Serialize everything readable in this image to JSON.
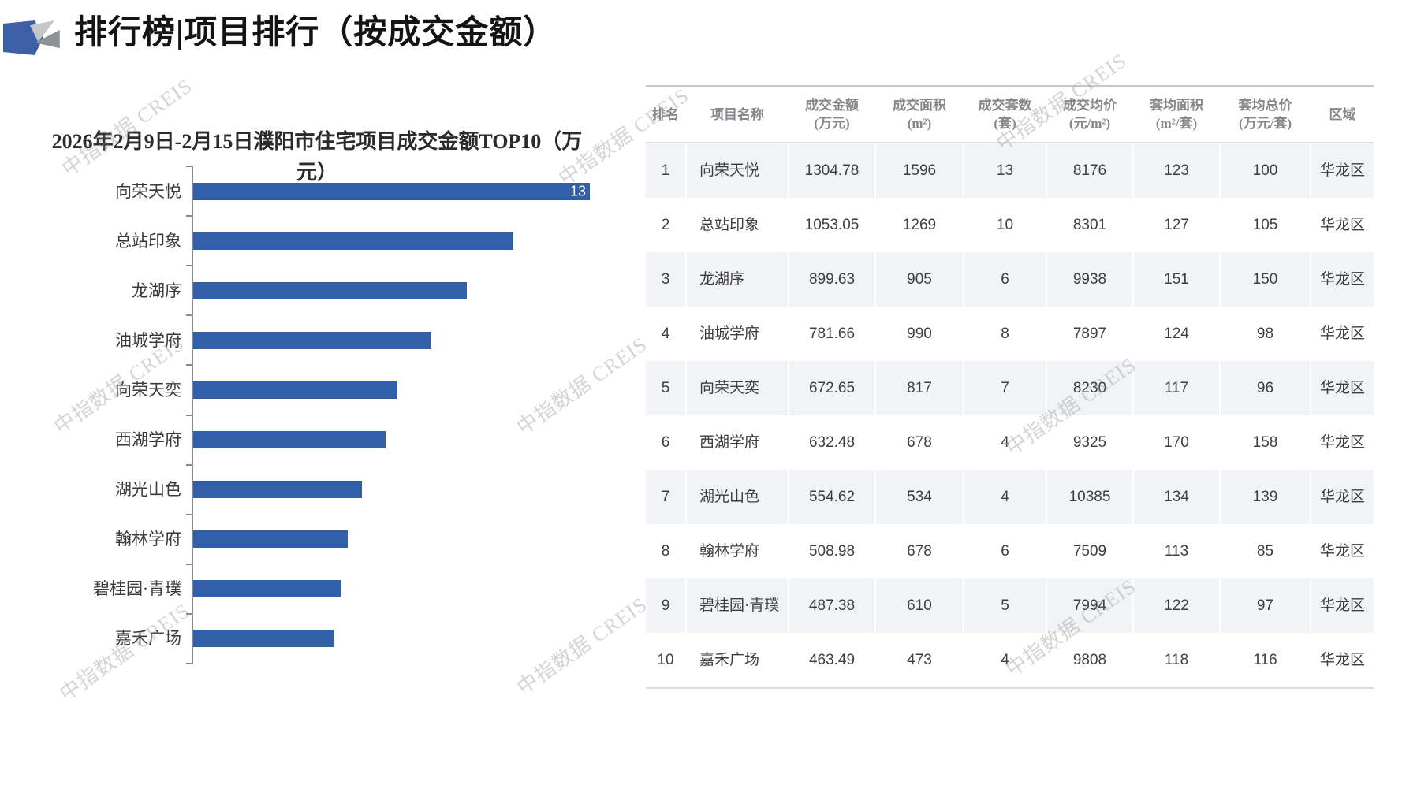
{
  "header": {
    "title": "排行榜|项目排行（按成交金额）"
  },
  "watermark": {
    "text": "中指数据 CREIS"
  },
  "chart": {
    "title_line1": "2026年2月9日-2月15日濮阳市住宅项目成交金额TOP10（万",
    "title_line2": "元）",
    "bar_color": "#3160A8",
    "first_bar_label": "13"
  },
  "chart_data": {
    "type": "bar",
    "orientation": "horizontal",
    "title": "2026年2月9日-2月15日濮阳市住宅项目成交金额TOP10（万元）",
    "categories": [
      "向荣天悦",
      "总站印象",
      "龙湖序",
      "油城学府",
      "向荣天奕",
      "西湖学府",
      "湖光山色",
      "翰林学府",
      "碧桂园·青璞",
      "嘉禾广场"
    ],
    "values": [
      1304.78,
      1053.05,
      899.63,
      781.66,
      672.65,
      632.48,
      554.62,
      508.98,
      487.38,
      463.49
    ],
    "xlabel": "",
    "ylabel": "",
    "xlim": [
      0,
      1310
    ],
    "grid": false,
    "legend": false,
    "visible_data_label_on_first_bar": "13"
  },
  "table": {
    "columns": [
      {
        "line1": "排名",
        "line2": ""
      },
      {
        "line1": "项目名称",
        "line2": ""
      },
      {
        "line1": "成交金额",
        "line2": "(万元)"
      },
      {
        "line1": "成交面积",
        "line2": "(m²)"
      },
      {
        "line1": "成交套数",
        "line2": "(套)"
      },
      {
        "line1": "成交均价",
        "line2": "(元/m²)"
      },
      {
        "line1": "套均面积",
        "line2": "(m²/套)"
      },
      {
        "line1": "套均总价",
        "line2": "(万元/套)"
      },
      {
        "line1": "区域",
        "line2": ""
      }
    ],
    "rows": [
      [
        "1",
        "向荣天悦",
        "1304.78",
        "1596",
        "13",
        "8176",
        "123",
        "100",
        "华龙区"
      ],
      [
        "2",
        "总站印象",
        "1053.05",
        "1269",
        "10",
        "8301",
        "127",
        "105",
        "华龙区"
      ],
      [
        "3",
        "龙湖序",
        "899.63",
        "905",
        "6",
        "9938",
        "151",
        "150",
        "华龙区"
      ],
      [
        "4",
        "油城学府",
        "781.66",
        "990",
        "8",
        "7897",
        "124",
        "98",
        "华龙区"
      ],
      [
        "5",
        "向荣天奕",
        "672.65",
        "817",
        "7",
        "8230",
        "117",
        "96",
        "华龙区"
      ],
      [
        "6",
        "西湖学府",
        "632.48",
        "678",
        "4",
        "9325",
        "170",
        "158",
        "华龙区"
      ],
      [
        "7",
        "湖光山色",
        "554.62",
        "534",
        "4",
        "10385",
        "134",
        "139",
        "华龙区"
      ],
      [
        "8",
        "翰林学府",
        "508.98",
        "678",
        "6",
        "7509",
        "113",
        "85",
        "华龙区"
      ],
      [
        "9",
        "碧桂园·青璞",
        "487.38",
        "610",
        "5",
        "7994",
        "122",
        "97",
        "华龙区"
      ],
      [
        "10",
        "嘉禾广场",
        "463.49",
        "473",
        "4",
        "9808",
        "118",
        "116",
        "华龙区"
      ]
    ],
    "stripe_color": "#F2F3F6"
  }
}
